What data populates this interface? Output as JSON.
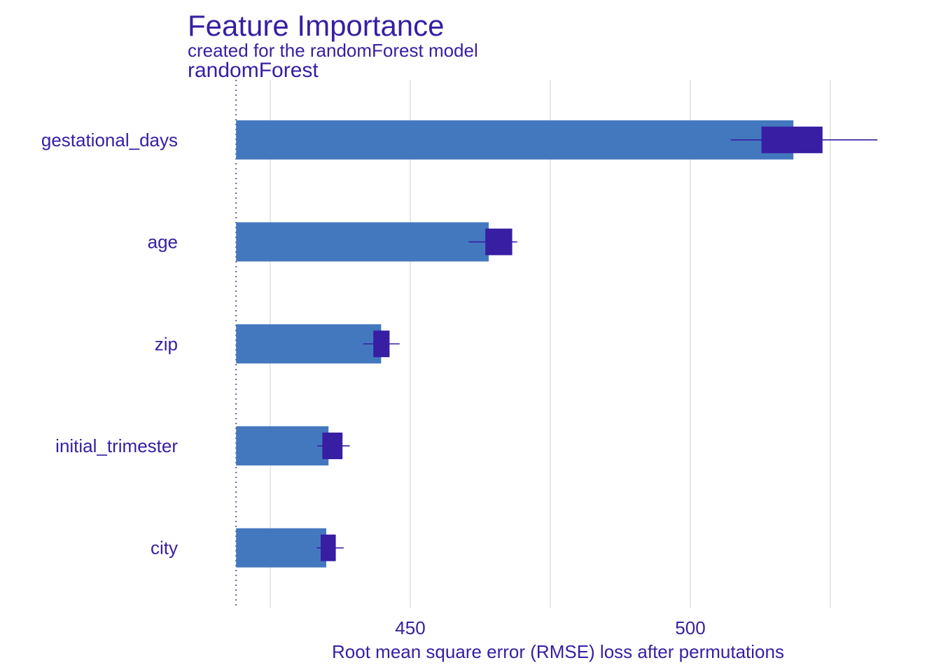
{
  "chart_data": {
    "type": "bar",
    "title": "Feature Importance",
    "subtitle": "created for the randomForest model",
    "panel_label": "randomForest",
    "xlabel": "Root mean square error (RMSE) loss after permutations",
    "ylabel": "",
    "xlim": [
      413,
      539
    ],
    "xticks": [
      450,
      500
    ],
    "gridlines": [
      425,
      450,
      475,
      500,
      525
    ],
    "baseline": 418.9,
    "grid": true,
    "legend": "none",
    "categories": [
      "gestational_days",
      "age",
      "zip",
      "initial_trimester",
      "city"
    ],
    "series": [
      {
        "values": [
          518.4,
          464.0,
          444.8,
          435.4,
          435.0
        ],
        "box_low": [
          512.7,
          463.4,
          443.4,
          434.3,
          434.0
        ],
        "box_high": [
          523.6,
          468.2,
          446.3,
          437.9,
          436.7
        ],
        "whisker_low": [
          507.2,
          460.4,
          441.6,
          433.4,
          433.3
        ],
        "whisker_high": [
          533.4,
          469.1,
          448.1,
          439.2,
          438.1
        ]
      }
    ],
    "colors": {
      "bar": "#4378bf",
      "box": "#371ea3",
      "text": "#371ea3",
      "grid": "#e0e0e0",
      "baseline": "#5a6a8a"
    }
  }
}
